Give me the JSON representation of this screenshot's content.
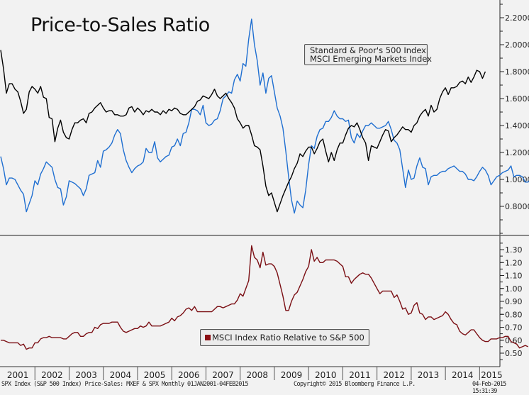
{
  "chart_data": [
    {
      "type": "line",
      "title": "Price-to-Sales Ratio",
      "panel": "top",
      "x_start": "2001-01",
      "x_step": "monthly",
      "ylim": [
        0.6,
        2.3
      ],
      "yticks": [
        0.8,
        1.0,
        1.2,
        1.4,
        1.6,
        1.8,
        2.0,
        2.2
      ],
      "ytick_labels": [
        "0.8000",
        "1.0000",
        "1.2000",
        "1.4000",
        "1.6000",
        "1.8000",
        "2.0000",
        "2.2000"
      ],
      "legend_position": "top-right",
      "series": [
        {
          "name": "Standard & Poor's 500 Index",
          "color": "#000000",
          "values": [
            1.96,
            1.82,
            1.64,
            1.71,
            1.71,
            1.67,
            1.65,
            1.58,
            1.49,
            1.52,
            1.65,
            1.69,
            1.67,
            1.64,
            1.69,
            1.61,
            1.6,
            1.46,
            1.45,
            1.28,
            1.38,
            1.44,
            1.35,
            1.31,
            1.3,
            1.37,
            1.42,
            1.42,
            1.44,
            1.45,
            1.42,
            1.49,
            1.5,
            1.53,
            1.55,
            1.57,
            1.53,
            1.5,
            1.51,
            1.51,
            1.48,
            1.48,
            1.47,
            1.47,
            1.48,
            1.53,
            1.54,
            1.5,
            1.53,
            1.51,
            1.48,
            1.51,
            1.5,
            1.52,
            1.5,
            1.5,
            1.48,
            1.51,
            1.49,
            1.52,
            1.51,
            1.53,
            1.52,
            1.49,
            1.48,
            1.48,
            1.5,
            1.52,
            1.54,
            1.58,
            1.59,
            1.62,
            1.61,
            1.6,
            1.63,
            1.67,
            1.62,
            1.6,
            1.62,
            1.64,
            1.6,
            1.57,
            1.53,
            1.45,
            1.42,
            1.38,
            1.4,
            1.4,
            1.33,
            1.25,
            1.24,
            1.22,
            1.1,
            0.95,
            0.88,
            0.9,
            0.83,
            0.76,
            0.82,
            0.88,
            0.93,
            0.98,
            1.02,
            1.08,
            1.12,
            1.19,
            1.17,
            1.21,
            1.24,
            1.24,
            1.19,
            1.23,
            1.28,
            1.3,
            1.21,
            1.13,
            1.2,
            1.14,
            1.22,
            1.27,
            1.27,
            1.33,
            1.38,
            1.4,
            1.39,
            1.42,
            1.37,
            1.31,
            1.27,
            1.14,
            1.25,
            1.24,
            1.23,
            1.28,
            1.33,
            1.37,
            1.36,
            1.28,
            1.31,
            1.33,
            1.36,
            1.39,
            1.37,
            1.37,
            1.35,
            1.4,
            1.42,
            1.47,
            1.5,
            1.52,
            1.47,
            1.55,
            1.5,
            1.52,
            1.6,
            1.65,
            1.68,
            1.63,
            1.68,
            1.68,
            1.69,
            1.72,
            1.73,
            1.71,
            1.76,
            1.72,
            1.76,
            1.81,
            1.8,
            1.75,
            1.8
          ]
        },
        {
          "name": "MSCI Emerging Markets Index",
          "color": "#1f6fd1",
          "values": [
            1.17,
            1.08,
            0.96,
            1.01,
            1.01,
            1.0,
            0.96,
            0.92,
            0.89,
            0.76,
            0.82,
            0.88,
            0.99,
            0.96,
            1.04,
            1.08,
            1.13,
            1.11,
            1.09,
            1.0,
            0.94,
            0.93,
            0.81,
            0.87,
            0.99,
            0.98,
            0.97,
            0.95,
            0.93,
            0.88,
            0.93,
            1.03,
            1.04,
            1.05,
            1.14,
            1.09,
            1.21,
            1.22,
            1.24,
            1.27,
            1.33,
            1.37,
            1.34,
            1.22,
            1.14,
            1.09,
            1.05,
            1.08,
            1.1,
            1.11,
            1.13,
            1.23,
            1.2,
            1.2,
            1.28,
            1.16,
            1.13,
            1.15,
            1.17,
            1.18,
            1.24,
            1.25,
            1.3,
            1.25,
            1.34,
            1.35,
            1.42,
            1.52,
            1.52,
            1.51,
            1.48,
            1.55,
            1.42,
            1.4,
            1.41,
            1.44,
            1.45,
            1.51,
            1.6,
            1.62,
            1.65,
            1.64,
            1.74,
            1.78,
            1.73,
            1.86,
            1.84,
            2.04,
            2.19,
            2.0,
            1.88,
            1.7,
            1.79,
            1.64,
            1.75,
            1.77,
            1.65,
            1.53,
            1.47,
            1.38,
            1.21,
            1.02,
            0.85,
            0.75,
            0.84,
            0.81,
            0.79,
            0.92,
            1.11,
            1.25,
            1.23,
            1.32,
            1.37,
            1.38,
            1.43,
            1.43,
            1.46,
            1.51,
            1.47,
            1.45,
            1.45,
            1.43,
            1.44,
            1.31,
            1.27,
            1.34,
            1.31,
            1.36,
            1.4,
            1.4,
            1.42,
            1.4,
            1.38,
            1.38,
            1.39,
            1.4,
            1.43,
            1.37,
            1.29,
            1.27,
            1.22,
            1.08,
            0.94,
            1.07,
            1.0,
            1.01,
            1.1,
            1.16,
            1.09,
            1.08,
            0.96,
            1.02,
            1.03,
            1.03,
            1.05,
            1.06,
            1.06,
            1.08,
            1.09,
            1.1,
            1.08,
            1.06,
            1.06,
            1.04,
            1.0,
            1.0,
            0.99,
            1.02,
            1.06,
            1.09,
            1.07,
            1.03,
            0.96,
            0.99,
            1.02,
            1.03,
            1.05,
            1.06,
            1.07,
            1.1,
            1.02,
            1.03,
            1.03,
            1.02,
            0.98,
            0.98,
            1.0
          ]
        }
      ]
    },
    {
      "type": "line",
      "title": "",
      "panel": "bottom",
      "x_start": "2001-01",
      "x_step": "monthly",
      "ylim": [
        0.43,
        1.37
      ],
      "yticks": [
        0.5,
        0.6,
        0.7,
        0.8,
        0.9,
        1.0,
        1.1,
        1.2,
        1.3
      ],
      "ytick_labels": [
        "0.50",
        "0.60",
        "0.70",
        "0.80",
        "0.90",
        "1.00",
        "1.10",
        "1.20",
        "1.30"
      ],
      "legend_position": "bottom-center",
      "series": [
        {
          "name": "MSCI Index Ratio Relative to S&P 500",
          "color": "#7b0f14",
          "values": [
            0.6,
            0.6,
            0.59,
            0.58,
            0.58,
            0.58,
            0.58,
            0.56,
            0.57,
            0.53,
            0.54,
            0.54,
            0.58,
            0.58,
            0.61,
            0.62,
            0.62,
            0.63,
            0.62,
            0.62,
            0.62,
            0.62,
            0.61,
            0.61,
            0.63,
            0.65,
            0.66,
            0.66,
            0.63,
            0.63,
            0.65,
            0.66,
            0.66,
            0.7,
            0.69,
            0.72,
            0.73,
            0.73,
            0.73,
            0.74,
            0.74,
            0.74,
            0.7,
            0.67,
            0.66,
            0.67,
            0.68,
            0.69,
            0.69,
            0.71,
            0.7,
            0.71,
            0.74,
            0.71,
            0.71,
            0.71,
            0.71,
            0.72,
            0.73,
            0.74,
            0.77,
            0.75,
            0.78,
            0.79,
            0.81,
            0.84,
            0.85,
            0.83,
            0.86,
            0.82,
            0.82,
            0.82,
            0.82,
            0.82,
            0.82,
            0.84,
            0.86,
            0.86,
            0.85,
            0.86,
            0.87,
            0.88,
            0.88,
            0.91,
            0.96,
            0.94,
            1.0,
            1.06,
            1.33,
            1.24,
            1.22,
            1.16,
            1.28,
            1.18,
            1.19,
            1.19,
            1.17,
            1.12,
            1.03,
            0.94,
            0.83,
            0.83,
            0.9,
            0.95,
            0.97,
            1.02,
            1.07,
            1.13,
            1.17,
            1.3,
            1.21,
            1.24,
            1.2,
            1.2,
            1.22,
            1.22,
            1.22,
            1.22,
            1.21,
            1.19,
            1.17,
            1.09,
            1.09,
            1.04,
            1.07,
            1.09,
            1.11,
            1.12,
            1.11,
            1.11,
            1.08,
            1.04,
            1.0,
            0.96,
            0.98,
            0.98,
            0.98,
            0.98,
            0.93,
            0.95,
            0.9,
            0.84,
            0.85,
            0.8,
            0.81,
            0.87,
            0.89,
            0.81,
            0.8,
            0.76,
            0.78,
            0.78,
            0.76,
            0.77,
            0.78,
            0.79,
            0.82,
            0.8,
            0.76,
            0.73,
            0.72,
            0.67,
            0.65,
            0.64,
            0.66,
            0.68,
            0.68,
            0.65,
            0.62,
            0.6,
            0.59,
            0.59,
            0.61,
            0.61,
            0.61,
            0.62,
            0.62,
            0.63,
            0.63,
            0.59,
            0.58,
            0.57,
            0.54,
            0.55,
            0.56,
            0.55
          ]
        }
      ]
    },
    {
      "type": "line",
      "role": "shared-x-axis",
      "xtick_labels": [
        "2001",
        "2002",
        "2003",
        "2004",
        "2005",
        "2006",
        "2007",
        "2008",
        "2009",
        "2010",
        "2011",
        "2012",
        "2013",
        "2014",
        "2015"
      ]
    }
  ],
  "footer": {
    "source": "SPX Index (S&P 500 Index) Price-Sales: MXEF & SPX  Monthly 01JAN2001-04FEB2015",
    "copyright": "Copyright© 2015 Bloomberg Finance L.P.",
    "timestamp": "04-Feb-2015 15:31:39"
  }
}
